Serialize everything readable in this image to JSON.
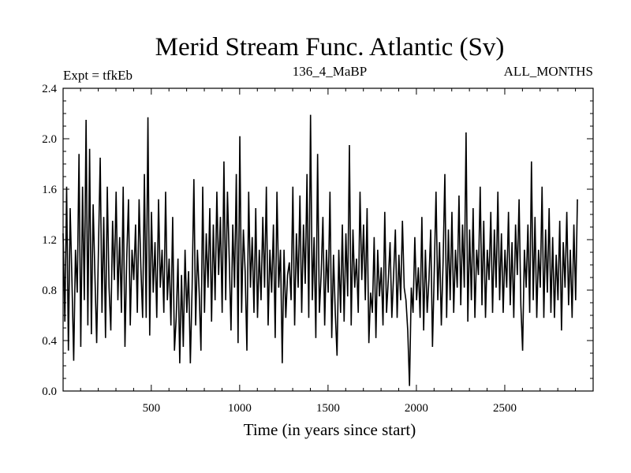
{
  "chart_data": {
    "type": "line",
    "title": "Merid Stream Func. Atlantic (Sv)",
    "subtitle_left": "Expt = tfkEb",
    "subtitle_center": "136_4_MaBP",
    "subtitle_right": "ALL_MONTHS",
    "xlabel": "Time (in years since start)",
    "ylabel": "",
    "xlim": [
      1,
      3000
    ],
    "ylim": [
      0.0,
      2.4
    ],
    "x_ticks": [
      500,
      1000,
      1500,
      2000,
      2500
    ],
    "y_ticks": [
      "0.0",
      "0.4",
      "0.8",
      "1.2",
      "1.6",
      "2.0",
      "2.4"
    ],
    "grid": false,
    "series": [
      {
        "color": "#000000",
        "x_start": 1,
        "x_step": 10,
        "values": [
          1.25,
          0.55,
          1.62,
          0.32,
          1.45,
          0.88,
          0.24,
          1.12,
          0.78,
          1.88,
          0.35,
          1.62,
          0.72,
          2.15,
          0.52,
          1.92,
          0.45,
          1.48,
          0.92,
          0.38,
          1.12,
          1.85,
          0.62,
          1.38,
          0.42,
          1.62,
          0.82,
          0.48,
          1.35,
          0.88,
          1.58,
          0.72,
          1.22,
          0.62,
          1.62,
          0.35,
          1.05,
          1.52,
          0.52,
          1.12,
          0.88,
          1.32,
          0.62,
          1.52,
          0.98,
          0.58,
          1.72,
          0.58,
          2.17,
          0.44,
          1.42,
          0.78,
          1.18,
          0.58,
          1.52,
          0.82,
          1.12,
          0.62,
          1.58,
          0.72,
          1.05,
          0.52,
          1.38,
          0.32,
          0.58,
          1.05,
          0.22,
          0.92,
          0.35,
          1.12,
          0.62,
          0.95,
          0.22,
          0.82,
          1.68,
          0.52,
          1.12,
          0.78,
          0.32,
          1.62,
          0.62,
          1.25,
          0.82,
          1.45,
          0.55,
          1.32,
          0.72,
          1.58,
          0.92,
          1.38,
          0.62,
          1.82,
          0.72,
          1.58,
          1.05,
          0.48,
          1.32,
          0.82,
          1.72,
          0.38,
          2.02,
          0.62,
          1.28,
          0.95,
          0.32,
          1.58,
          0.82,
          1.22,
          0.62,
          1.45,
          0.58,
          1.12,
          0.72,
          1.38,
          0.82,
          1.62,
          0.52,
          1.12,
          0.78,
          1.32,
          0.42,
          1.58,
          0.82,
          1.12,
          0.22,
          1.12,
          0.58,
          0.92,
          1.02,
          0.72,
          1.62,
          0.52,
          1.25,
          0.82,
          1.55,
          0.62,
          1.32,
          0.85,
          1.72,
          0.58,
          2.19,
          0.72,
          1.22,
          0.42,
          1.88,
          0.62,
          0.92,
          1.38,
          0.52,
          1.12,
          0.78,
          1.58,
          0.42,
          1.08,
          0.62,
          0.28,
          1.12,
          0.62,
          1.32,
          0.55,
          1.25,
          0.75,
          1.95,
          0.52,
          1.28,
          0.82,
          1.05,
          0.62,
          1.58,
          0.88,
          1.32,
          0.72,
          1.45,
          0.38,
          0.78,
          0.62,
          1.22,
          0.42,
          1.12,
          0.75,
          0.98,
          0.52,
          1.42,
          0.62,
          0.88,
          1.18,
          0.58,
          0.92,
          1.28,
          0.58,
          1.08,
          0.72,
          1.35,
          0.82,
          0.72,
          0.48,
          0.04,
          0.82,
          0.62,
          1.22,
          0.72,
          0.98,
          0.58,
          1.38,
          0.48,
          1.12,
          0.62,
          0.88,
          1.28,
          0.35,
          0.95,
          1.58,
          0.72,
          1.18,
          0.52,
          1.02,
          1.72,
          0.58,
          1.28,
          0.72,
          1.42,
          0.62,
          1.12,
          0.82,
          1.55,
          0.68,
          1.32,
          0.82,
          2.05,
          0.55,
          1.28,
          0.72,
          1.45,
          0.58,
          1.12,
          0.92,
          1.62,
          0.68,
          1.35,
          0.58,
          1.12,
          0.88,
          1.42,
          0.62,
          1.28,
          0.82,
          1.58,
          0.72,
          1.25,
          0.62,
          1.12,
          0.82,
          1.42,
          0.68,
          1.18,
          0.58,
          1.32,
          0.92,
          1.52,
          0.68,
          0.32,
          1.12,
          0.82,
          1.32,
          0.62,
          1.82,
          0.72,
          1.38,
          0.58,
          1.12,
          0.82,
          1.62,
          0.58,
          1.28,
          0.78,
          1.45,
          0.62,
          1.22,
          0.58,
          1.08,
          0.72,
          1.35,
          0.48,
          1.18,
          0.82,
          1.42,
          0.68,
          1.12,
          0.58,
          1.32,
          0.72,
          1.52
        ]
      }
    ]
  }
}
